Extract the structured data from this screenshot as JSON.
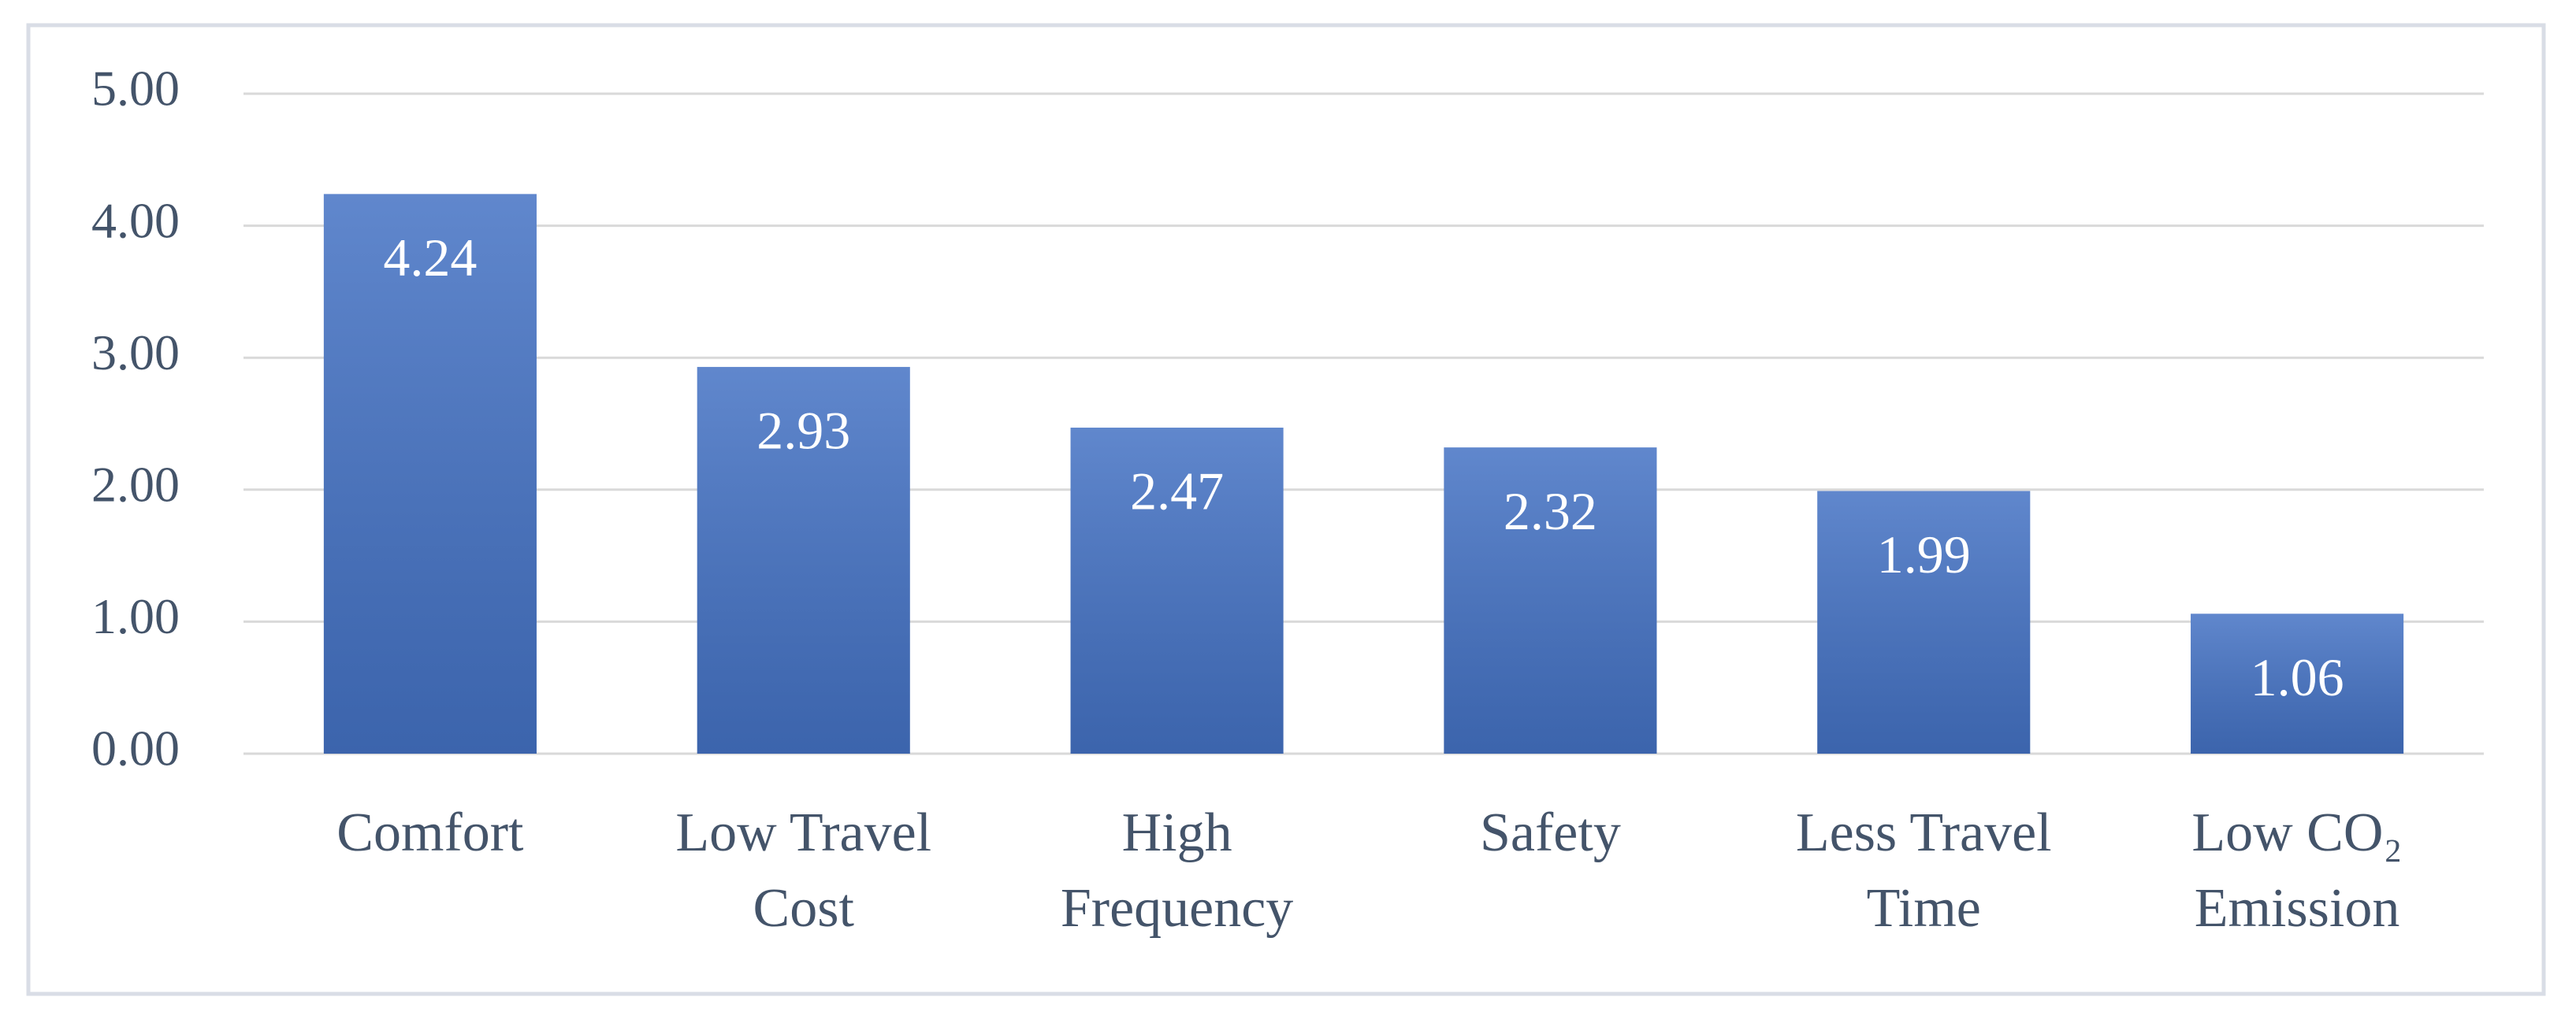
{
  "chart_data": {
    "type": "bar",
    "categories": [
      "Comfort",
      "Low Travel Cost",
      "High Frequency",
      "Safety",
      "Less Travel Time",
      "Low CO₂ Emission"
    ],
    "values": [
      4.24,
      2.93,
      2.47,
      2.32,
      1.99,
      1.06
    ],
    "color": "#4472c4",
    "ylim": [
      0,
      5
    ],
    "yticks": [
      {
        "value": 0,
        "label": "0.00"
      },
      {
        "value": 1,
        "label": "1.00"
      },
      {
        "value": 2,
        "label": "2.00"
      },
      {
        "value": 3,
        "label": "3.00"
      },
      {
        "value": 4,
        "label": "4.00"
      },
      {
        "value": 5,
        "label": "5.00"
      }
    ],
    "grid": true
  }
}
